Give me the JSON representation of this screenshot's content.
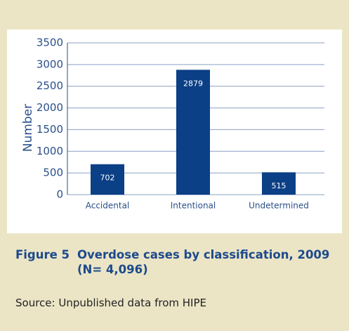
{
  "chart_data": {
    "type": "bar",
    "figure_label": "Figure 5",
    "title": "Overdose cases by classification, 2009",
    "subtitle": "(N= 4,096)",
    "source": "Source: Unpublished data from HIPE",
    "ylabel": "Number",
    "categories": [
      "Accidental",
      "Intentional",
      "Undetermined"
    ],
    "values": [
      702,
      2879,
      515
    ],
    "color": "#0b3f86",
    "ylim": [
      0,
      3500
    ],
    "yticks": [
      0,
      500,
      1000,
      1500,
      2000,
      2500,
      3000,
      3500
    ],
    "grid": true
  }
}
